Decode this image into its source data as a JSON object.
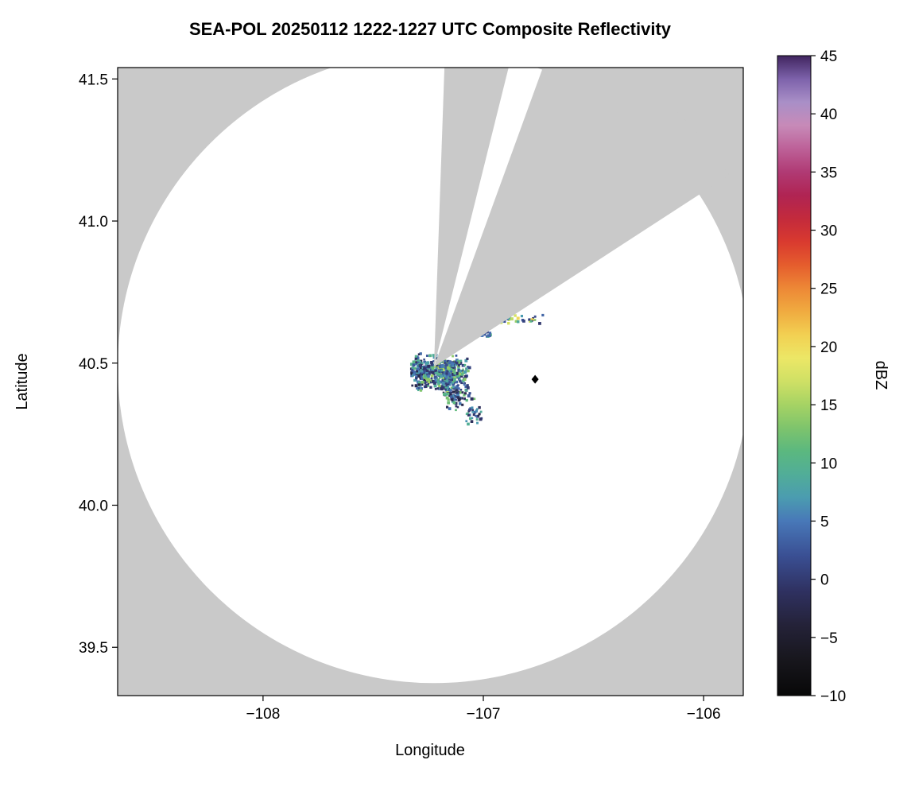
{
  "chart_data": {
    "type": "radar-ppi-composite",
    "title": "SEA-POL 20250112 1222-1227 UTC Composite Reflectivity",
    "xlabel": "Longitude",
    "ylabel": "Latitude",
    "xlim": [
      -108.66,
      -105.82
    ],
    "ylim": [
      39.33,
      41.54
    ],
    "xticks": [
      -108,
      -107,
      -106
    ],
    "xtick_labels": [
      "−108",
      "−107",
      "−106"
    ],
    "yticks": [
      39.5,
      40.0,
      40.5,
      41.0,
      41.5
    ],
    "ytick_labels": [
      "39.5",
      "40.0",
      "40.5",
      "41.0",
      "41.5"
    ],
    "grid": false,
    "background_color": "#ffffff",
    "no_data_color": "#c9c9c9",
    "scanned_clear_color": "#ffffff",
    "radar": {
      "lon": -107.224,
      "lat": 40.487,
      "range_radius_deg_lat": 1.113
    },
    "blocked_sectors_azimuth_deg": [
      [
        2,
        14
      ],
      [
        20,
        57
      ]
    ],
    "marker": {
      "lon": -106.765,
      "lat": 40.443,
      "shape": "diamond",
      "color": "#000000"
    },
    "colorbar": {
      "label": "dBZ",
      "min": -10,
      "max": 45,
      "ticks": [
        -10,
        -5,
        0,
        5,
        10,
        15,
        20,
        25,
        30,
        35,
        40,
        45
      ],
      "tick_labels": [
        "−10",
        "−5",
        "0",
        "5",
        "10",
        "15",
        "20",
        "25",
        "30",
        "35",
        "40",
        "45"
      ],
      "stops": [
        {
          "v": -10,
          "c": "#080808"
        },
        {
          "v": -7,
          "c": "#17161c"
        },
        {
          "v": -4,
          "c": "#242238"
        },
        {
          "v": -1,
          "c": "#2f3161"
        },
        {
          "v": 2,
          "c": "#3a4f93"
        },
        {
          "v": 5,
          "c": "#4878b8"
        },
        {
          "v": 7,
          "c": "#4b9cb0"
        },
        {
          "v": 9,
          "c": "#51ad98"
        },
        {
          "v": 11,
          "c": "#5bb87f"
        },
        {
          "v": 13,
          "c": "#7ec46c"
        },
        {
          "v": 15,
          "c": "#a6d364"
        },
        {
          "v": 17,
          "c": "#cfe065"
        },
        {
          "v": 19,
          "c": "#ece766"
        },
        {
          "v": 21,
          "c": "#f2d052"
        },
        {
          "v": 23,
          "c": "#f0ab40"
        },
        {
          "v": 25,
          "c": "#ed8836"
        },
        {
          "v": 27,
          "c": "#e55d2d"
        },
        {
          "v": 29,
          "c": "#d93a2f"
        },
        {
          "v": 31,
          "c": "#c32a3c"
        },
        {
          "v": 33,
          "c": "#b02453"
        },
        {
          "v": 35,
          "c": "#b03a74"
        },
        {
          "v": 37,
          "c": "#bd6198"
        },
        {
          "v": 39,
          "c": "#c78ab8"
        },
        {
          "v": 41,
          "c": "#a98fc7"
        },
        {
          "v": 43,
          "c": "#7d62ab"
        },
        {
          "v": 45,
          "c": "#40255f"
        }
      ]
    },
    "echo_seed": 42,
    "echo_clusters": [
      {
        "name": "west-clump",
        "lon": -107.285,
        "lat": 40.468,
        "sx": 0.045,
        "sy": 0.075,
        "n": 150,
        "dbz": [
          -4,
          11
        ]
      },
      {
        "name": "main-clump",
        "lon": -107.175,
        "lat": 40.462,
        "sx": 0.12,
        "sy": 0.07,
        "n": 450,
        "dbz": [
          -1,
          16
        ]
      },
      {
        "name": "south-tail",
        "lon": -107.12,
        "lat": 40.385,
        "sx": 0.08,
        "sy": 0.055,
        "n": 80,
        "dbz": [
          -3,
          13
        ]
      },
      {
        "name": "southeast-scatter",
        "lon": -107.055,
        "lat": 40.32,
        "sx": 0.05,
        "sy": 0.045,
        "n": 30,
        "dbz": [
          -3,
          10
        ]
      },
      {
        "name": "mid-specks",
        "lon": -106.98,
        "lat": 40.6,
        "sx": 0.04,
        "sy": 0.02,
        "n": 12,
        "dbz": [
          0,
          16
        ]
      },
      {
        "name": "east-specks",
        "lon": -106.83,
        "lat": 40.652,
        "sx": 0.13,
        "sy": 0.018,
        "n": 30,
        "dbz": [
          -2,
          22
        ]
      }
    ]
  }
}
